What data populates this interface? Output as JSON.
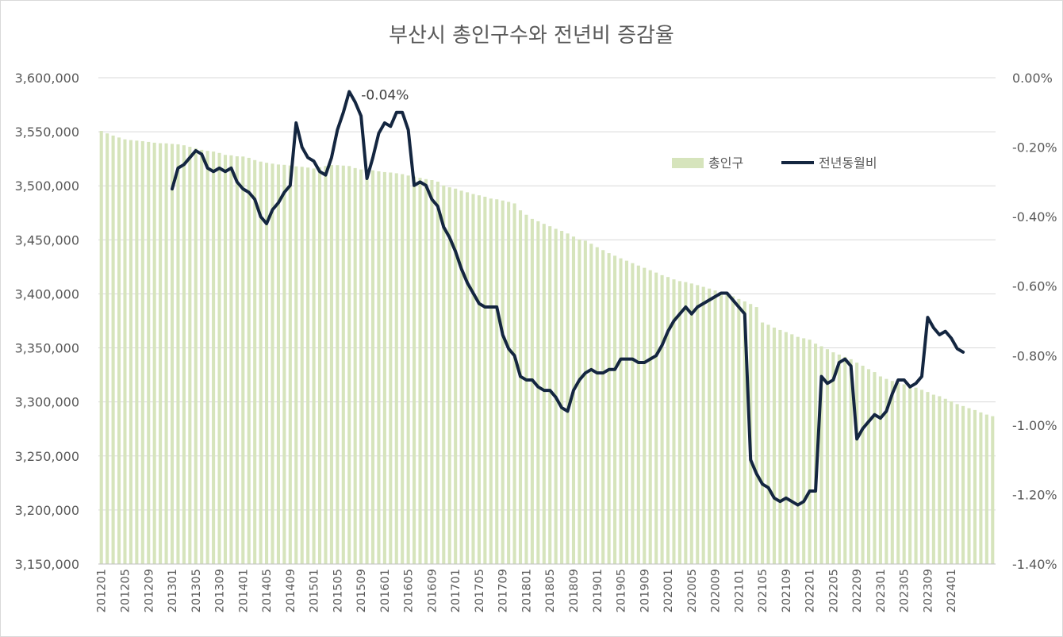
{
  "chart_data": {
    "type": "bar+line",
    "title": "부산시 총인구수와 전년비 증감율",
    "colors": {
      "bars": "#d6e4bc",
      "line": "#142640",
      "grid": "#d9d9d9",
      "text": "#595959"
    },
    "legend": {
      "position": "right",
      "entries": [
        "총인구",
        "전년동월비"
      ]
    },
    "grid": true,
    "y_left": {
      "ylim": [
        3150000,
        3600000
      ],
      "tick_labels": [
        "3,600,000",
        "3,550,000",
        "3,500,000",
        "3,450,000",
        "3,400,000",
        "3,350,000",
        "3,300,000",
        "3,250,000",
        "3,200,000",
        "3,150,000"
      ]
    },
    "y_right": {
      "ylim": [
        -1.4,
        0.0
      ],
      "tick_labels": [
        "0.00%",
        "-0.20%",
        "-0.40%",
        "-0.60%",
        "-0.80%",
        "-1.00%",
        "-1.20%",
        "-1.40%"
      ]
    },
    "x_tick_labels": [
      "201201",
      "201205",
      "201209",
      "201301",
      "201305",
      "201309",
      "201401",
      "201405",
      "201409",
      "201501",
      "201505",
      "201509",
      "201601",
      "201605",
      "201609",
      "201701",
      "201705",
      "201709",
      "201801",
      "201805",
      "201809",
      "201901",
      "201905",
      "201909",
      "202001",
      "202005",
      "202009",
      "202101",
      "202105",
      "202109",
      "202201",
      "202205",
      "202209",
      "202301",
      "202305",
      "202309",
      "202401"
    ],
    "series": [
      {
        "name": "총인구",
        "type": "bar",
        "start": "201201",
        "values": [
          3550800,
          3548500,
          3546500,
          3544700,
          3543000,
          3542300,
          3541800,
          3541300,
          3540600,
          3539900,
          3539400,
          3539300,
          3538800,
          3538400,
          3537500,
          3536100,
          3534700,
          3533300,
          3532300,
          3531700,
          3530400,
          3528600,
          3528200,
          3527300,
          3527100,
          3525900,
          3523800,
          3522400,
          3521300,
          3520500,
          3519700,
          3519400,
          3518800,
          3518000,
          3517600,
          3516900,
          3516000,
          3517100,
          3518300,
          3519200,
          3519100,
          3518700,
          3518300,
          3516400,
          3515100,
          3514700,
          3514300,
          3513400,
          3512700,
          3512300,
          3511600,
          3510800,
          3509500,
          3508500,
          3507400,
          3506200,
          3505300,
          3503800,
          3500300,
          3498600,
          3497400,
          3495500,
          3494000,
          3492400,
          3491200,
          3489900,
          3488200,
          3487500,
          3486400,
          3485100,
          3483700,
          3477300,
          3473200,
          3469400,
          3467200,
          3464800,
          3462600,
          3460200,
          3458300,
          3455900,
          3453000,
          3450400,
          3449200,
          3446400,
          3443200,
          3440500,
          3437700,
          3435300,
          3432900,
          3430700,
          3428400,
          3426200,
          3424100,
          3421900,
          3419700,
          3417300,
          3415600,
          3413400,
          3411800,
          3410900,
          3409600,
          3408100,
          3406500,
          3404900,
          3403100,
          3401300,
          3399600,
          3397700,
          3395300,
          3393000,
          3390600,
          3387800,
          3373500,
          3371400,
          3368800,
          3366600,
          3364600,
          3362600,
          3360200,
          3358900,
          3357600,
          3353900,
          3351500,
          3348800,
          3345900,
          3343800,
          3341700,
          3339500,
          3336300,
          3333500,
          3330300,
          3327600,
          3323600,
          3321300,
          3319400,
          3317400,
          3316300,
          3315500,
          3313200,
          3311200,
          3309200,
          3306700,
          3305300,
          3302900,
          3300600,
          3298000,
          3296200,
          3294200,
          3292500,
          3290300,
          3288300,
          3286800
        ]
      },
      {
        "name": "전년동월비",
        "type": "line",
        "start": "201301",
        "values": [
          -0.32,
          -0.26,
          -0.25,
          -0.23,
          -0.21,
          -0.22,
          -0.26,
          -0.27,
          -0.26,
          -0.27,
          -0.26,
          -0.3,
          -0.32,
          -0.33,
          -0.35,
          -0.4,
          -0.42,
          -0.38,
          -0.36,
          -0.33,
          -0.31,
          -0.13,
          -0.2,
          -0.23,
          -0.24,
          -0.27,
          -0.28,
          -0.23,
          -0.15,
          -0.1,
          -0.04,
          -0.07,
          -0.11,
          -0.29,
          -0.23,
          -0.16,
          -0.13,
          -0.14,
          -0.1,
          -0.1,
          -0.15,
          -0.31,
          -0.3,
          -0.31,
          -0.35,
          -0.37,
          -0.43,
          -0.46,
          -0.5,
          -0.55,
          -0.59,
          -0.62,
          -0.65,
          -0.66,
          -0.66,
          -0.66,
          -0.74,
          -0.78,
          -0.8,
          -0.86,
          -0.87,
          -0.87,
          -0.89,
          -0.9,
          -0.9,
          -0.92,
          -0.95,
          -0.96,
          -0.9,
          -0.87,
          -0.85,
          -0.84,
          -0.85,
          -0.85,
          -0.84,
          -0.84,
          -0.81,
          -0.81,
          -0.81,
          -0.82,
          -0.82,
          -0.81,
          -0.8,
          -0.77,
          -0.73,
          -0.7,
          -0.68,
          -0.66,
          -0.68,
          -0.66,
          -0.65,
          -0.64,
          -0.63,
          -0.62,
          -0.62,
          -0.64,
          -0.66,
          -0.68,
          -1.1,
          -1.14,
          -1.17,
          -1.18,
          -1.21,
          -1.22,
          -1.21,
          -1.22,
          -1.23,
          -1.22,
          -1.19,
          -1.19,
          -0.86,
          -0.88,
          -0.87,
          -0.82,
          -0.81,
          -0.83,
          -1.04,
          -1.01,
          -0.99,
          -0.97,
          -0.98,
          -0.96,
          -0.91,
          -0.87,
          -0.87,
          -0.89,
          -0.88,
          -0.86,
          -0.69,
          -0.72,
          -0.74,
          -0.73,
          -0.75,
          -0.78,
          -0.79
        ]
      }
    ],
    "annotations": [
      {
        "text": "-0.04%",
        "period": "201507"
      }
    ]
  }
}
